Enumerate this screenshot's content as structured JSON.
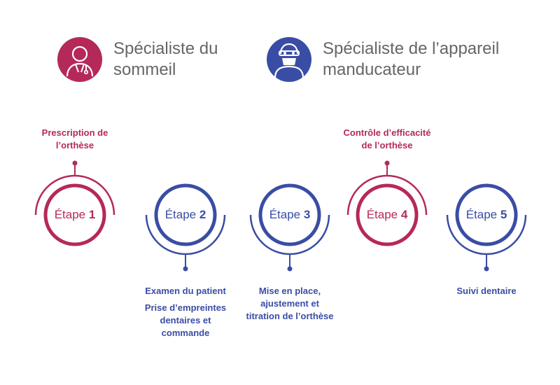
{
  "colors": {
    "sleep": "#b5295a",
    "dental": "#3a4da5"
  },
  "legend": {
    "sleep": {
      "line1": "Spécialiste du",
      "line2": "sommeil",
      "icon": "doctor-icon"
    },
    "dental": {
      "line1": "Spécialiste de l’appareil",
      "line2": "manducateur",
      "icon": "dentist-icon"
    }
  },
  "steps": [
    {
      "word": "Étape",
      "num": "1",
      "role": "sleep",
      "desc": [
        "Prescription de",
        "l’orthèse"
      ],
      "desc2": []
    },
    {
      "word": "Étape",
      "num": "2",
      "role": "dental",
      "desc": [
        "Examen du patient"
      ],
      "desc2": [
        "Prise d’empreintes",
        "dentaires et",
        "commande"
      ]
    },
    {
      "word": "Étape",
      "num": "3",
      "role": "dental",
      "desc": [
        "Mise en place,",
        "ajustement et",
        "titration de l’orthèse"
      ],
      "desc2": []
    },
    {
      "word": "Étape",
      "num": "4",
      "role": "sleep",
      "desc": [
        "Contrôle d’efficacité",
        "de l’orthèse"
      ],
      "desc2": []
    },
    {
      "word": "Étape",
      "num": "5",
      "role": "dental",
      "desc": [
        "Suivi dentaire"
      ],
      "desc2": []
    }
  ]
}
